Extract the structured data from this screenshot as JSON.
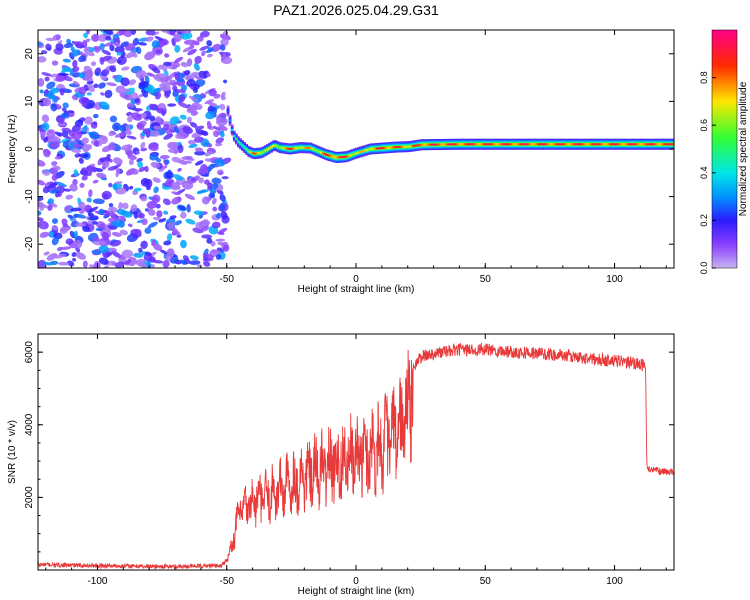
{
  "title": "PAZ1.2026.025.04.29.G31",
  "colors": {
    "snr_line": "#e83a3a",
    "axes": "#000000",
    "background": "#ffffff"
  },
  "chart_data": [
    {
      "type": "heatmap",
      "name": "spectrogram",
      "xlabel": "Height of straight line (km)",
      "ylabel": "Frequency (Hz)",
      "xlim": [
        -123,
        123
      ],
      "ylim": [
        -25,
        25
      ],
      "xticks": [
        -100,
        -50,
        0,
        50,
        100
      ],
      "yticks": [
        -20,
        -10,
        0,
        10,
        20
      ],
      "noise_region": {
        "x_from": -123,
        "x_to": -50,
        "amplitude_range": [
          0.05,
          0.35
        ]
      },
      "signal_start_km": -50,
      "colormap": "rainbow (purple-blue-cyan-green-yellow-red-magenta)",
      "colorbar": {
        "label": "Normalized spectral amplitude",
        "range": [
          0,
          1
        ],
        "ticks": [
          "0.0",
          "0.2",
          "0.4",
          "0.6",
          "0.8"
        ]
      },
      "signal_track": [
        {
          "x": -50,
          "f": 8,
          "amp": 0.3
        },
        {
          "x": -48,
          "f": 3,
          "amp": 0.45
        },
        {
          "x": -46,
          "f": 1.5,
          "amp": 0.55
        },
        {
          "x": -44,
          "f": 0.5,
          "amp": 0.6
        },
        {
          "x": -42,
          "f": -0.5,
          "amp": 0.7
        },
        {
          "x": -40,
          "f": -1.0,
          "amp": 0.85
        },
        {
          "x": -37,
          "f": -0.8,
          "amp": 0.8
        },
        {
          "x": -35,
          "f": -0.2,
          "amp": 0.75
        },
        {
          "x": -32,
          "f": 0.8,
          "amp": 0.7
        },
        {
          "x": -30,
          "f": 0.3,
          "amp": 0.75
        },
        {
          "x": -26,
          "f": 0.0,
          "amp": 0.9
        },
        {
          "x": -22,
          "f": 0.3,
          "amp": 0.8
        },
        {
          "x": -18,
          "f": 0.2,
          "amp": 0.8
        },
        {
          "x": -15,
          "f": -0.5,
          "amp": 0.75
        },
        {
          "x": -12,
          "f": -1.2,
          "amp": 0.9
        },
        {
          "x": -8,
          "f": -1.8,
          "amp": 0.95
        },
        {
          "x": -4,
          "f": -1.6,
          "amp": 0.9
        },
        {
          "x": -1,
          "f": -1.0,
          "amp": 0.8
        },
        {
          "x": 2,
          "f": -0.5,
          "amp": 0.75
        },
        {
          "x": 5,
          "f": 0.0,
          "amp": 0.85
        },
        {
          "x": 10,
          "f": 0.2,
          "amp": 0.95
        },
        {
          "x": 15,
          "f": 0.4,
          "amp": 0.9
        },
        {
          "x": 20,
          "f": 0.5,
          "amp": 0.85
        },
        {
          "x": 25,
          "f": 0.9,
          "amp": 0.95
        },
        {
          "x": 40,
          "f": 1.0,
          "amp": 0.95
        },
        {
          "x": 60,
          "f": 1.0,
          "amp": 0.95
        },
        {
          "x": 80,
          "f": 1.0,
          "amp": 0.95
        },
        {
          "x": 100,
          "f": 1.0,
          "amp": 0.95
        },
        {
          "x": 123,
          "f": 1.0,
          "amp": 0.95
        }
      ]
    },
    {
      "type": "line",
      "name": "snr",
      "xlabel": "Height of straight line (km)",
      "ylabel": "SNR (10 * v/v)",
      "xlim": [
        -123,
        123
      ],
      "ylim": [
        0,
        6500
      ],
      "xticks": [
        -100,
        -50,
        0,
        50,
        100
      ],
      "yticks": [
        2000,
        4000,
        6000
      ],
      "series": [
        {
          "name": "SNR",
          "x": [
            -123,
            -110,
            -100,
            -90,
            -80,
            -70,
            -60,
            -52,
            -50,
            -48,
            -46,
            -45,
            -44,
            -42,
            -40,
            -38,
            -35,
            -32,
            -30,
            -26,
            -22,
            -18,
            -14,
            -10,
            -6,
            -2,
            0,
            4,
            8,
            12,
            16,
            18,
            20,
            22,
            25,
            30,
            40,
            50,
            60,
            70,
            80,
            90,
            100,
            105,
            110,
            112,
            112.5,
            115,
            120,
            123
          ],
          "y": [
            150,
            130,
            120,
            110,
            100,
            95,
            110,
            120,
            300,
            700,
            1500,
            1700,
            1800,
            1900,
            2000,
            2100,
            2200,
            2300,
            2400,
            2550,
            2700,
            2850,
            3000,
            3150,
            3250,
            3300,
            3400,
            3500,
            3700,
            3900,
            4100,
            4400,
            4800,
            5600,
            5900,
            6000,
            6100,
            6100,
            6050,
            6000,
            5950,
            5850,
            5800,
            5750,
            5700,
            5650,
            2800,
            2750,
            2700,
            2700
          ],
          "color": "#e83a3a"
        }
      ]
    }
  ]
}
